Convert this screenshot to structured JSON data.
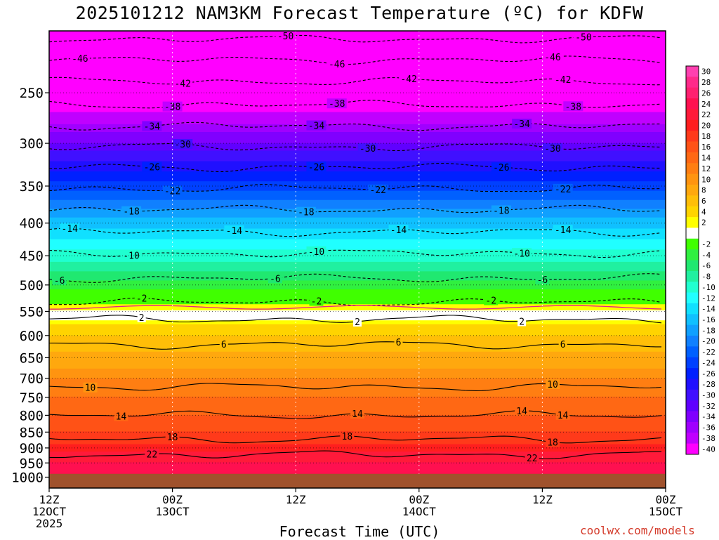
{
  "title": "2025101212 NAM3KM Forecast Temperature (ºC) for KDFW",
  "xlabel": "Forecast Time (UTC)",
  "credit": "coolwx.com/models",
  "chart_data": {
    "type": "heatmap",
    "title": "2025101212 NAM3KM Forecast Temperature (ºC) for KDFW",
    "xlabel": "Forecast Time (UTC)",
    "ylabel": "",
    "y_axis": {
      "ticks": [
        250,
        300,
        350,
        400,
        450,
        500,
        550,
        600,
        650,
        700,
        750,
        800,
        850,
        900,
        950,
        1000
      ],
      "range_hpa": [
        200,
        1040
      ],
      "scale": "log",
      "inverted": true
    },
    "x_axis": {
      "range_hours": [
        0,
        60
      ],
      "ticks": [
        {
          "hour": 0,
          "line1": "12Z",
          "line2": "12OCT",
          "line3": "2025"
        },
        {
          "hour": 12,
          "line1": "00Z",
          "line2": "13OCT",
          "line3": ""
        },
        {
          "hour": 24,
          "line1": "12Z",
          "line2": "",
          "line3": ""
        },
        {
          "hour": 36,
          "line1": "00Z",
          "line2": "14OCT",
          "line3": ""
        },
        {
          "hour": 48,
          "line1": "12Z",
          "line2": "",
          "line3": ""
        },
        {
          "hour": 60,
          "line1": "00Z",
          "line2": "15OCT",
          "line3": ""
        }
      ]
    },
    "grid": true,
    "surface_pressure_hpa": 988,
    "colorbar": {
      "levels": [
        "30",
        "28",
        "26",
        "24",
        "22",
        "20",
        "18",
        "16",
        "14",
        "12",
        "10",
        "8",
        "6",
        "4",
        "2",
        "",
        "-2",
        "-4",
        "-6",
        "-8",
        "-10",
        "-12",
        "-14",
        "-16",
        "-18",
        "-20",
        "-22",
        "-24",
        "-26",
        "-28",
        "-30",
        "-32",
        "-34",
        "-36",
        "-38",
        "-40"
      ],
      "colors": [
        "#ff40b0",
        "#ff2a8a",
        "#ff2070",
        "#ff1050",
        "#ff1a3a",
        "#ff1e1e",
        "#ff3a1a",
        "#ff5216",
        "#ff6814",
        "#ff7e12",
        "#ff9410",
        "#ffa80e",
        "#ffbe08",
        "#ffd400",
        "#ffff00",
        "#ffffff",
        "#40ff00",
        "#30f040",
        "#20e870",
        "#20f0a0",
        "#20ffd0",
        "#20ffff",
        "#10e0ff",
        "#10c0ff",
        "#10a0ff",
        "#1080ff",
        "#0060ff",
        "#0040ff",
        "#0020ff",
        "#2010ff",
        "#4010ff",
        "#6000ff",
        "#8000ff",
        "#a000ff",
        "#c000ff",
        "#ff00ff"
      ]
    },
    "temperature_profile": {
      "pressure_hpa": [
        200,
        225,
        250,
        275,
        300,
        325,
        350,
        375,
        400,
        425,
        450,
        475,
        500,
        525,
        550,
        575,
        600,
        625,
        650,
        675,
        700,
        725,
        750,
        775,
        800,
        825,
        850,
        875,
        900,
        925,
        950,
        975,
        1000
      ],
      "temp_c": [
        -52,
        -48,
        -43,
        -38,
        -33,
        -28,
        -24,
        -20,
        -16,
        -13,
        -10,
        -7,
        -4,
        -1,
        1,
        3,
        5,
        6,
        8,
        9,
        11,
        12,
        13,
        14,
        15,
        16,
        17,
        18,
        20,
        22,
        23,
        24,
        25
      ]
    },
    "contours": [
      {
        "value": "-50",
        "pressure_hpa": 206,
        "label_hours": [
          23,
          52
        ]
      },
      {
        "value": "-46",
        "pressure_hpa": 222,
        "label_hours": [
          3,
          28,
          49
        ]
      },
      {
        "value": "-42",
        "pressure_hpa": 240,
        "label_hours": [
          13,
          35,
          50
        ]
      },
      {
        "value": "-38",
        "pressure_hpa": 261,
        "label_hours": [
          12,
          28,
          51
        ]
      },
      {
        "value": "-34",
        "pressure_hpa": 282,
        "label_hours": [
          10,
          26,
          46
        ]
      },
      {
        "value": "-30",
        "pressure_hpa": 304,
        "label_hours": [
          13,
          31,
          49
        ]
      },
      {
        "value": "-26",
        "pressure_hpa": 327,
        "label_hours": [
          10,
          26,
          44
        ]
      },
      {
        "value": "-22",
        "pressure_hpa": 353,
        "label_hours": [
          12,
          32,
          50
        ]
      },
      {
        "value": "-18",
        "pressure_hpa": 381,
        "label_hours": [
          8,
          25,
          44
        ]
      },
      {
        "value": "-14",
        "pressure_hpa": 413,
        "label_hours": [
          2,
          18,
          34,
          50
        ]
      },
      {
        "value": "-10",
        "pressure_hpa": 446,
        "label_hours": [
          8,
          26,
          46
        ]
      },
      {
        "value": "-6",
        "pressure_hpa": 488,
        "label_hours": [
          1,
          22,
          48
        ]
      },
      {
        "value": "-2",
        "pressure_hpa": 532,
        "label_hours": [
          9,
          26,
          43
        ]
      },
      {
        "value": "2",
        "pressure_hpa": 566,
        "label_hours": [
          9,
          30,
          46
        ]
      },
      {
        "value": "6",
        "pressure_hpa": 620,
        "label_hours": [
          17,
          34,
          50
        ]
      },
      {
        "value": "10",
        "pressure_hpa": 722,
        "label_hours": [
          4,
          49
        ]
      },
      {
        "value": "14",
        "pressure_hpa": 800,
        "label_hours": [
          7,
          30,
          46,
          50
        ]
      },
      {
        "value": "18",
        "pressure_hpa": 872,
        "label_hours": [
          12,
          29,
          49
        ]
      },
      {
        "value": "22",
        "pressure_hpa": 922,
        "label_hours": [
          10,
          47
        ]
      }
    ]
  }
}
